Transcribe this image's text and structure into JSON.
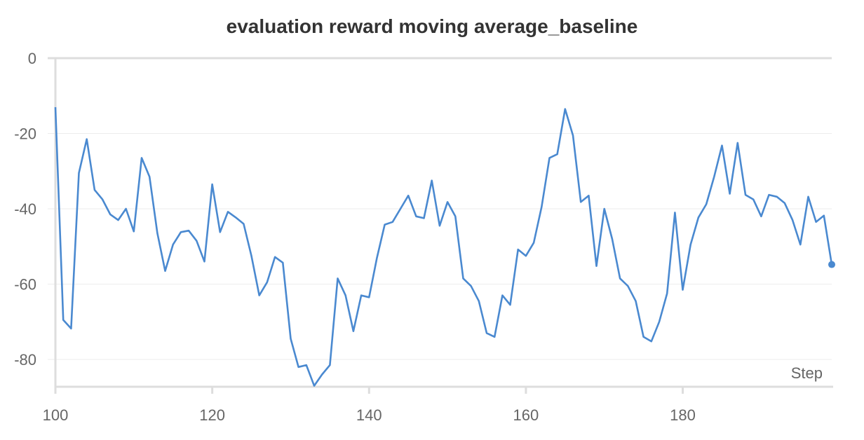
{
  "chart_data": {
    "type": "line",
    "title": "evaluation reward moving average_baseline",
    "xlabel": "Step",
    "ylabel": "",
    "xlim": [
      100,
      199
    ],
    "ylim": [
      -88,
      0
    ],
    "x_ticks": [
      100,
      120,
      140,
      160,
      180
    ],
    "y_ticks": [
      0,
      -20,
      -40,
      -60,
      -80
    ],
    "x_tick_labels": [
      "100",
      "120",
      "140",
      "160",
      "180"
    ],
    "y_tick_labels": [
      "0",
      "-20",
      "-40",
      "-60",
      "-80"
    ],
    "grid": true,
    "line_color": "#4a89d0",
    "series": [
      {
        "x": [
          100,
          101,
          102,
          103,
          104,
          105,
          106,
          107,
          108,
          109,
          110,
          111,
          112,
          113,
          114,
          115,
          116,
          117,
          118,
          119,
          120,
          121,
          122,
          123,
          124,
          125,
          126,
          127,
          128,
          129,
          130,
          131,
          132,
          133,
          134,
          135,
          136,
          137,
          138,
          139,
          140,
          141,
          142,
          143,
          144,
          145,
          146,
          147,
          148,
          149,
          150,
          151,
          152,
          153,
          154,
          155,
          156,
          157,
          158,
          159,
          160,
          161,
          162,
          163,
          164,
          165,
          166,
          167,
          168,
          169,
          170,
          171,
          172,
          173,
          174,
          175,
          176,
          177,
          178,
          179,
          180,
          181,
          182,
          183,
          184,
          185,
          186,
          187,
          188,
          189,
          190,
          191,
          192,
          193,
          194,
          195,
          196,
          197,
          198,
          199
        ],
        "values": [
          -13,
          -69.5,
          -71.8,
          -30.5,
          -21.5,
          -35,
          -37.5,
          -41.5,
          -43,
          -40,
          -46,
          -26.5,
          -31.5,
          -46.5,
          -56.5,
          -49.5,
          -46.2,
          -45.8,
          -48.5,
          -54,
          -33.5,
          -46.2,
          -40.8,
          -42.3,
          -44,
          -52.5,
          -63,
          -59.5,
          -52.8,
          -54.3,
          -74.5,
          -82,
          -81.5,
          -87,
          -84,
          -81.5,
          -58.5,
          -63,
          -72.5,
          -63,
          -63.5,
          -53,
          -44.2,
          -43.5,
          -40,
          -36.5,
          -42,
          -42.5,
          -32.5,
          -44.5,
          -38.2,
          -42,
          -58.5,
          -60.5,
          -64.5,
          -73,
          -74,
          -63,
          -65.5,
          -50.8,
          -52.5,
          -49,
          -39.5,
          -26.5,
          -25.5,
          -13.5,
          -20.5,
          -38.2,
          -36.5,
          -55.2,
          -40,
          -48,
          -58.5,
          -60.5,
          -64.5,
          -74,
          -75.2,
          -70,
          -62.5,
          -41,
          -61.5,
          -49.5,
          -42.3,
          -38.8,
          -31.5,
          -23.2,
          -36,
          -22.5,
          -36.3,
          -37.5,
          -42,
          -36.3,
          -36.8,
          -38.5,
          -43,
          -49.5,
          -36.8,
          -43.5,
          -41.8,
          -54.8
        ]
      }
    ]
  }
}
